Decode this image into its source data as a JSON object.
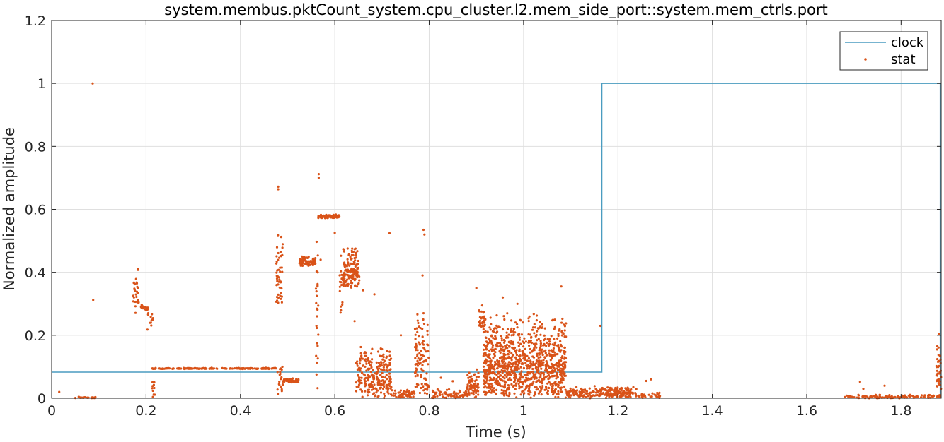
{
  "chart_data": {
    "type": "line",
    "title": "system.membus.pktCount_system.cpu_cluster.l2.mem_side_port::system.mem_ctrls.port",
    "xlabel": "Time (s)",
    "ylabel": "Normalized amplitude",
    "xlim": [
      0,
      1.885
    ],
    "ylim": [
      0,
      1.2
    ],
    "x_ticks": [
      0,
      0.2,
      0.4,
      0.6,
      0.8,
      1,
      1.2,
      1.4,
      1.6,
      1.8
    ],
    "x_tick_labels": [
      "0",
      "0.2",
      "0.4",
      "0.6",
      "0.8",
      "1",
      "1.2",
      "1.4",
      "1.6",
      "1.8"
    ],
    "y_ticks": [
      0,
      0.2,
      0.4,
      0.6,
      0.8,
      1,
      1.2
    ],
    "y_tick_labels": [
      "0",
      "0.2",
      "0.4",
      "0.6",
      "0.8",
      "1",
      "1.2"
    ],
    "grid": true,
    "legend_position": "top-right",
    "series": [
      {
        "name": "clock",
        "style": "line",
        "color": "#4a9cc0",
        "x": [
          0,
          1.166,
          1.166,
          1.883,
          1.883
        ],
        "y": [
          0.083,
          0.083,
          1.0,
          1.0,
          0.0
        ]
      },
      {
        "name": "stat",
        "style": "dots",
        "color": "#d95319",
        "clusters": [
          {
            "x": [
              0.05,
              0.093
            ],
            "y": [
              0,
              0.006
            ],
            "n": 25
          },
          {
            "x": [
              0.173,
              0.185
            ],
            "y": [
              0.26,
              0.45
            ],
            "n": 30
          },
          {
            "x": [
              0.185,
              0.205
            ],
            "y": [
              0.28,
              0.3
            ],
            "n": 20
          },
          {
            "x": [
              0.2,
              0.215
            ],
            "y": [
              0.21,
              0.29
            ],
            "n": 12
          },
          {
            "x": [
              0.213,
              0.22
            ],
            "y": [
              0.0,
              0.09
            ],
            "n": 10
          },
          {
            "x": [
              0.212,
              0.476
            ],
            "y": [
              0.093,
              0.097
            ],
            "n": 160
          },
          {
            "x": [
              0.476,
              0.49
            ],
            "y": [
              0.3,
              0.54
            ],
            "n": 50
          },
          {
            "x": [
              0.478,
              0.49
            ],
            "y": [
              0.0,
              0.16
            ],
            "n": 20
          },
          {
            "x": [
              0.49,
              0.525
            ],
            "y": [
              0.05,
              0.065
            ],
            "n": 45
          },
          {
            "x": [
              0.525,
              0.56
            ],
            "y": [
              0.42,
              0.455
            ],
            "n": 80
          },
          {
            "x": [
              0.56,
              0.565
            ],
            "y": [
              0.0,
              0.6
            ],
            "n": 25
          },
          {
            "x": [
              0.565,
              0.61
            ],
            "y": [
              0.572,
              0.585
            ],
            "n": 70
          },
          {
            "x": [
              0.61,
              0.617
            ],
            "y": [
              0.26,
              0.48
            ],
            "n": 15
          },
          {
            "x": [
              0.617,
              0.652
            ],
            "y": [
              0.35,
              0.49
            ],
            "n": 150
          },
          {
            "x": [
              0.645,
              0.72
            ],
            "y": [
              0.0,
              0.17
            ],
            "n": 250
          },
          {
            "x": [
              0.72,
              0.77
            ],
            "y": [
              0.0,
              0.03
            ],
            "n": 50
          },
          {
            "x": [
              0.77,
              0.8
            ],
            "y": [
              0.0,
              0.3
            ],
            "n": 100
          },
          {
            "x": [
              0.8,
              0.88
            ],
            "y": [
              0.0,
              0.03
            ],
            "n": 70
          },
          {
            "x": [
              0.88,
              0.905
            ],
            "y": [
              0.0,
              0.1
            ],
            "n": 80
          },
          {
            "x": [
              0.905,
              0.92
            ],
            "y": [
              0.22,
              0.31
            ],
            "n": 30
          },
          {
            "x": [
              0.915,
              1.09
            ],
            "y": [
              0.0,
              0.28
            ],
            "n": 1000
          },
          {
            "x": [
              1.09,
              1.165
            ],
            "y": [
              0.0,
              0.04
            ],
            "n": 100
          },
          {
            "x": [
              1.165,
              1.24
            ],
            "y": [
              0.0,
              0.04
            ],
            "n": 150
          },
          {
            "x": [
              1.24,
              1.29
            ],
            "y": [
              0.0,
              0.02
            ],
            "n": 30
          },
          {
            "x": [
              1.68,
              1.88
            ],
            "y": [
              0.0,
              0.012
            ],
            "n": 120
          },
          {
            "x": [
              1.875,
              1.885
            ],
            "y": [
              0.0,
              0.2
            ],
            "n": 40
          }
        ],
        "points": [
          [
            0.016,
            0.02
          ],
          [
            0.087,
            1.0
          ],
          [
            0.088,
            0.312
          ],
          [
            0.48,
            0.672
          ],
          [
            0.48,
            0.664
          ],
          [
            0.566,
            0.712
          ],
          [
            0.566,
            0.7
          ],
          [
            0.716,
            0.524
          ],
          [
            0.788,
            0.535
          ],
          [
            0.79,
            0.52
          ],
          [
            0.786,
            0.39
          ],
          [
            0.788,
            0.27
          ],
          [
            0.652,
            0.385
          ],
          [
            0.66,
            0.343
          ],
          [
            0.684,
            0.33
          ],
          [
            0.9,
            0.35
          ],
          [
            0.956,
            0.32
          ],
          [
            0.987,
            0.3
          ],
          [
            1.08,
            0.355
          ],
          [
            1.163,
            0.23
          ],
          [
            0.54,
            0.43
          ],
          [
            0.57,
            0.44
          ],
          [
            0.6,
            0.525
          ],
          [
            0.642,
            0.245
          ],
          [
            0.74,
            0.2
          ],
          [
            0.77,
            0.22
          ],
          [
            0.825,
            0.065
          ],
          [
            0.85,
            0.054
          ],
          [
            1.26,
            0.055
          ],
          [
            1.27,
            0.06
          ],
          [
            1.713,
            0.052
          ],
          [
            1.72,
            0.03
          ],
          [
            1.765,
            0.04
          ],
          [
            1.88,
            0.205
          ]
        ]
      }
    ]
  }
}
